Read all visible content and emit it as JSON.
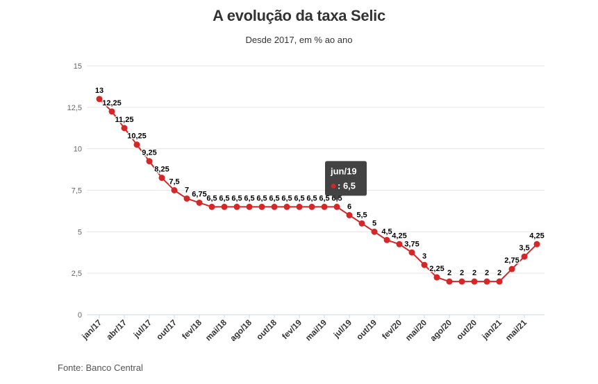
{
  "header": {
    "title": "A evolução da taxa Selic",
    "subtitle": "Desde 2017, em % ao ano"
  },
  "footer": {
    "source": "Fonte: Banco Central"
  },
  "tooltip": {
    "category": "jun/19",
    "value_text": ": 6,5"
  },
  "colors": {
    "series": "#d62728",
    "grid": "#e6e6e6",
    "axis_text": "#666666",
    "tooltip_bg": "#333333"
  },
  "chart_data": {
    "type": "line",
    "title": "A evolução da taxa Selic",
    "subtitle": "Desde 2017, em % ao ano",
    "ylim": [
      0,
      15
    ],
    "y_ticks": [
      0,
      2.5,
      5,
      7.5,
      10,
      12.5,
      15
    ],
    "y_tick_labels": [
      "0",
      "2,5",
      "5",
      "7,5",
      "10",
      "12,5",
      "15"
    ],
    "x_tick_labels": [
      "jan/17",
      "abr/17",
      "jul/17",
      "out/17",
      "fev/18",
      "mai/18",
      "ago/18",
      "out/18",
      "fev/19",
      "mai/19",
      "jul/19",
      "out/19",
      "fev/20",
      "mai/20",
      "ago/20",
      "out/20",
      "jan/21",
      "mai/21"
    ],
    "x_tick_indices": [
      0,
      2,
      4,
      6,
      8,
      10,
      12,
      14,
      16,
      18,
      20,
      22,
      24,
      26,
      28,
      30,
      32,
      34
    ],
    "grid": true,
    "legend": "none",
    "series": [
      {
        "values": [
          13,
          12.25,
          11.25,
          10.25,
          9.25,
          8.25,
          7.5,
          7,
          6.75,
          6.5,
          6.5,
          6.5,
          6.5,
          6.5,
          6.5,
          6.5,
          6.5,
          6.5,
          6.5,
          6.5,
          6,
          5.5,
          5,
          4.5,
          4.25,
          3.75,
          3,
          2.25,
          2,
          2,
          2,
          2,
          2,
          2.75,
          3.5,
          4.25
        ],
        "labels": [
          "13",
          "12,25",
          "11,25",
          "10,25",
          "9,25",
          "8,25",
          "7,5",
          "7",
          "6,75",
          "6,5",
          "6,5",
          "6,5",
          "6,5",
          "6,5",
          "6,5",
          "6,5",
          "6,5",
          "6,5",
          "6,5",
          "6,5",
          "6",
          "5,5",
          "5",
          "4,5",
          "4,25",
          "3,75",
          "3",
          "2,25",
          "2",
          "2",
          "2",
          "2",
          "2",
          "2,75",
          "3,5",
          "4,25"
        ]
      }
    ]
  }
}
